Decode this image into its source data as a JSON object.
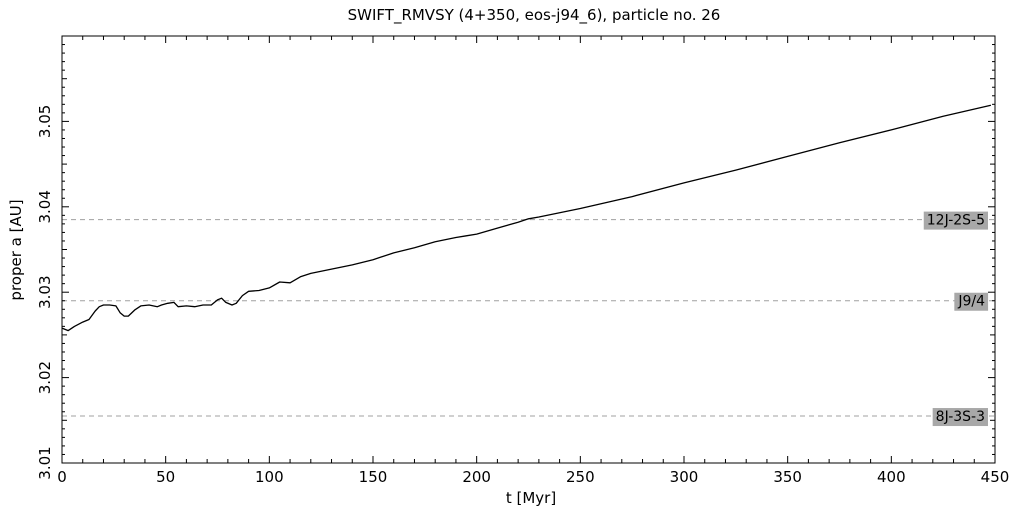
{
  "chart_data": {
    "type": "line",
    "title": "SWIFT_RMVSY (4+350, eos-j94_6), particle no. 26",
    "xlabel": "t [Myr]",
    "ylabel": "proper a [AU]",
    "xlim": [
      0,
      450
    ],
    "ylim": [
      3.01,
      3.06
    ],
    "xticks": [
      0,
      50,
      100,
      150,
      200,
      250,
      300,
      350,
      400,
      450
    ],
    "xtick_labels": [
      "0",
      "50",
      "100",
      "150",
      "200",
      "250",
      "300",
      "350",
      "400",
      "450"
    ],
    "yticks": [
      3.01,
      3.02,
      3.03,
      3.04,
      3.05
    ],
    "ytick_labels": [
      "3.01",
      "3.02",
      "3.03",
      "3.04",
      "3.05"
    ],
    "grid": false,
    "series": [
      {
        "points": [
          [
            0,
            3.0258
          ],
          [
            3,
            3.0255
          ],
          [
            6,
            3.026
          ],
          [
            10,
            3.0265
          ],
          [
            13,
            3.0268
          ],
          [
            16,
            3.0278
          ],
          [
            18,
            3.0283
          ],
          [
            20,
            3.0285
          ],
          [
            23,
            3.0285
          ],
          [
            26,
            3.0284
          ],
          [
            28,
            3.0276
          ],
          [
            30,
            3.0272
          ],
          [
            32,
            3.0272
          ],
          [
            35,
            3.0279
          ],
          [
            38,
            3.0284
          ],
          [
            42,
            3.0285
          ],
          [
            46,
            3.0283
          ],
          [
            48,
            3.0285
          ],
          [
            51,
            3.0287
          ],
          [
            54,
            3.0288
          ],
          [
            56,
            3.0283
          ],
          [
            60,
            3.0284
          ],
          [
            64,
            3.0283
          ],
          [
            68,
            3.0285
          ],
          [
            72,
            3.0285
          ],
          [
            75,
            3.0291
          ],
          [
            77,
            3.0293
          ],
          [
            79,
            3.0288
          ],
          [
            82,
            3.0285
          ],
          [
            84,
            3.0287
          ],
          [
            87,
            3.0296
          ],
          [
            90,
            3.0301
          ],
          [
            95,
            3.0302
          ],
          [
            100,
            3.0305
          ],
          [
            105,
            3.0312
          ],
          [
            110,
            3.0311
          ],
          [
            115,
            3.0318
          ],
          [
            120,
            3.0322
          ],
          [
            130,
            3.0327
          ],
          [
            140,
            3.0332
          ],
          [
            150,
            3.0338
          ],
          [
            160,
            3.0346
          ],
          [
            170,
            3.0352
          ],
          [
            180,
            3.0359
          ],
          [
            190,
            3.0364
          ],
          [
            195,
            3.0366
          ],
          [
            200,
            3.0368
          ],
          [
            210,
            3.0375
          ],
          [
            220,
            3.0382
          ],
          [
            225,
            3.0386
          ],
          [
            230,
            3.0388
          ],
          [
            250,
            3.0398
          ],
          [
            275,
            3.0412
          ],
          [
            300,
            3.0428
          ],
          [
            325,
            3.0443
          ],
          [
            350,
            3.0459
          ],
          [
            375,
            3.0475
          ],
          [
            400,
            3.049
          ],
          [
            425,
            3.0506
          ],
          [
            448,
            3.0519
          ]
        ]
      }
    ],
    "reference_lines": [
      {
        "label": "12J-2S-5",
        "y": 3.0385
      },
      {
        "label": "J9/4",
        "y": 3.029
      },
      {
        "label": "8J-3S-3",
        "y": 3.0155
      }
    ]
  }
}
